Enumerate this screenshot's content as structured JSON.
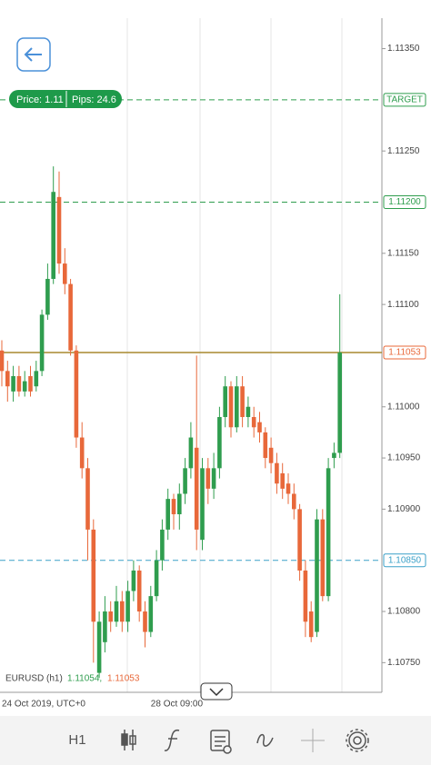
{
  "chart_data": {
    "type": "candlestick",
    "categories": [
      "24 Oct 2019, UTC+0",
      null,
      null,
      null,
      null,
      null,
      null,
      null,
      null,
      null,
      null,
      null,
      null,
      null,
      null,
      null,
      null,
      null,
      null,
      null,
      null,
      null,
      null,
      null,
      null,
      null,
      "28 Oct 09:00",
      null,
      null,
      null,
      null,
      null,
      null,
      null,
      null,
      null,
      null,
      null,
      null,
      null,
      null,
      null,
      null,
      null,
      null,
      null,
      null,
      null,
      null,
      null,
      null,
      null,
      null,
      null,
      null,
      null,
      null,
      null,
      null,
      null
    ],
    "open": [
      1.11055,
      1.11035,
      1.11015,
      1.1103,
      1.11015,
      1.1103,
      1.1102,
      1.11035,
      1.1109,
      1.11125,
      1.11205,
      1.1114,
      1.1112,
      1.11055,
      1.1097,
      1.1094,
      1.1088,
      1.1074,
      1.1077,
      1.108,
      1.1079,
      1.1081,
      1.1079,
      1.1082,
      1.1084,
      1.108,
      1.1078,
      1.10815,
      1.1085,
      1.1088,
      1.1091,
      1.10895,
      1.10915,
      1.1094,
      1.1096,
      1.1087,
      1.1094,
      1.1092,
      1.1094,
      1.1099,
      1.1102,
      1.1098,
      1.1102,
      1.1099,
      1.1099,
      1.10985,
      1.10975,
      1.1096,
      1.10945,
      1.10935,
      1.10925,
      1.10915,
      1.109,
      1.1084,
      1.108,
      1.1078,
      1.1089,
      1.10815,
      1.1095,
      1.10955
    ],
    "high": [
      1.11065,
      1.11045,
      1.1104,
      1.1104,
      1.11035,
      1.1104,
      1.11045,
      1.11095,
      1.1114,
      1.11235,
      1.1123,
      1.11155,
      1.11125,
      1.1106,
      1.10985,
      1.1095,
      1.1089,
      1.108,
      1.10815,
      1.1081,
      1.10825,
      1.1082,
      1.1083,
      1.1085,
      1.10845,
      1.1081,
      1.10825,
      1.1086,
      1.1089,
      1.1092,
      1.10915,
      1.10925,
      1.1095,
      1.10985,
      1.1105,
      1.1095,
      1.1095,
      1.10955,
      1.11,
      1.1103,
      1.11025,
      1.1103,
      1.1103,
      1.1101,
      1.11,
      1.10995,
      1.1098,
      1.1097,
      1.10955,
      1.10945,
      1.10935,
      1.10925,
      1.10905,
      1.1085,
      1.1081,
      1.109,
      1.109,
      1.1095,
      1.10965,
      1.1111
    ],
    "low": [
      1.1102,
      1.11005,
      1.11005,
      1.1101,
      1.1101,
      1.1101,
      1.11015,
      1.1103,
      1.11085,
      1.1112,
      1.1113,
      1.1111,
      1.1105,
      1.1096,
      1.1093,
      1.1085,
      1.1075,
      1.10735,
      1.1076,
      1.1078,
      1.10785,
      1.1078,
      1.1078,
      1.1081,
      1.1079,
      1.10765,
      1.10775,
      1.1081,
      1.1084,
      1.1087,
      1.1088,
      1.1088,
      1.10905,
      1.1093,
      1.1086,
      1.1086,
      1.10905,
      1.1091,
      1.1093,
      1.1098,
      1.1097,
      1.10975,
      1.1098,
      1.1098,
      1.1097,
      1.10965,
      1.1094,
      1.10935,
      1.10915,
      1.1091,
      1.10905,
      1.1089,
      1.1083,
      1.10775,
      1.1077,
      1.10775,
      1.1081,
      1.1081,
      1.1094,
      1.1095
    ],
    "close": [
      1.11035,
      1.1102,
      1.1103,
      1.11015,
      1.11025,
      1.11015,
      1.11035,
      1.1109,
      1.11125,
      1.1121,
      1.1114,
      1.1112,
      1.11055,
      1.1097,
      1.1094,
      1.1088,
      1.1079,
      1.1079,
      1.108,
      1.1079,
      1.1081,
      1.1079,
      1.1082,
      1.1084,
      1.108,
      1.1078,
      1.10815,
      1.1085,
      1.1088,
      1.1091,
      1.10895,
      1.10915,
      1.1094,
      1.1097,
      1.1088,
      1.1094,
      1.1092,
      1.1094,
      1.1099,
      1.1102,
      1.1098,
      1.1102,
      1.1099,
      1.11,
      1.1098,
      1.10975,
      1.1095,
      1.10945,
      1.10925,
      1.1092,
      1.10915,
      1.109,
      1.1084,
      1.1079,
      1.10775,
      1.1089,
      1.10815,
      1.1094,
      1.10955,
      1.11053
    ],
    "up_color": "#2f9d4e",
    "down_color": "#e8683a",
    "ylim": [
      1.10721,
      1.11378
    ],
    "yticks": [
      {
        "value": 1.1135,
        "label": "1.11350"
      },
      {
        "value": 1.1125,
        "label": "1.11250"
      },
      {
        "value": 1.1115,
        "label": "1.11150"
      },
      {
        "value": 1.111,
        "label": "1.11100"
      },
      {
        "value": 1.11,
        "label": "1.11000"
      },
      {
        "value": 1.1095,
        "label": "1.10950"
      },
      {
        "value": 1.109,
        "label": "1.10900"
      },
      {
        "value": 1.108,
        "label": "1.10800"
      },
      {
        "value": 1.1075,
        "label": "1.10750"
      }
    ],
    "levels": [
      {
        "value": 1.113,
        "label": "TARGET",
        "color": "#2f9d4e"
      },
      {
        "value": 1.112,
        "label": "1.11200",
        "color": "#2f9d4e"
      },
      {
        "value": 1.11053,
        "label": "1.11053",
        "color": "#e8683a"
      },
      {
        "value": 1.1085,
        "label": "1.10850",
        "color": "#3aa0c8"
      }
    ],
    "legend": {
      "symbol": "EURUSD (h1)",
      "bid": "1.11054,",
      "ask": "1.11053"
    }
  },
  "ui": {
    "price": "Price: 1.11",
    "pips": "Pips: 24.6",
    "timeframe": "H1"
  }
}
